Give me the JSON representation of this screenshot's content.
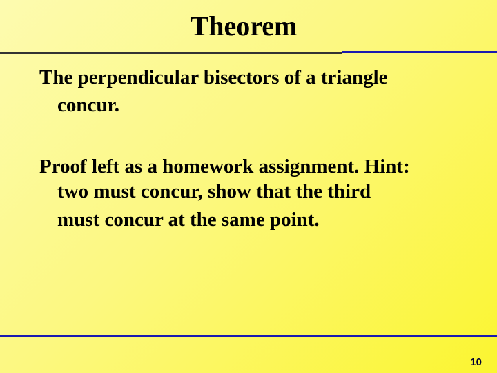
{
  "header": {
    "title": "Theorem"
  },
  "body": {
    "paragraphs": [
      {
        "lines": [
          "The perpendicular bisectors of a triangle",
          "concur."
        ]
      },
      {
        "lines": [
          "Proof left as a homework assignment. Hint:",
          "two must concur, show that the third",
          "must concur at the same point."
        ]
      }
    ]
  },
  "footer": {
    "page_number": "10"
  }
}
